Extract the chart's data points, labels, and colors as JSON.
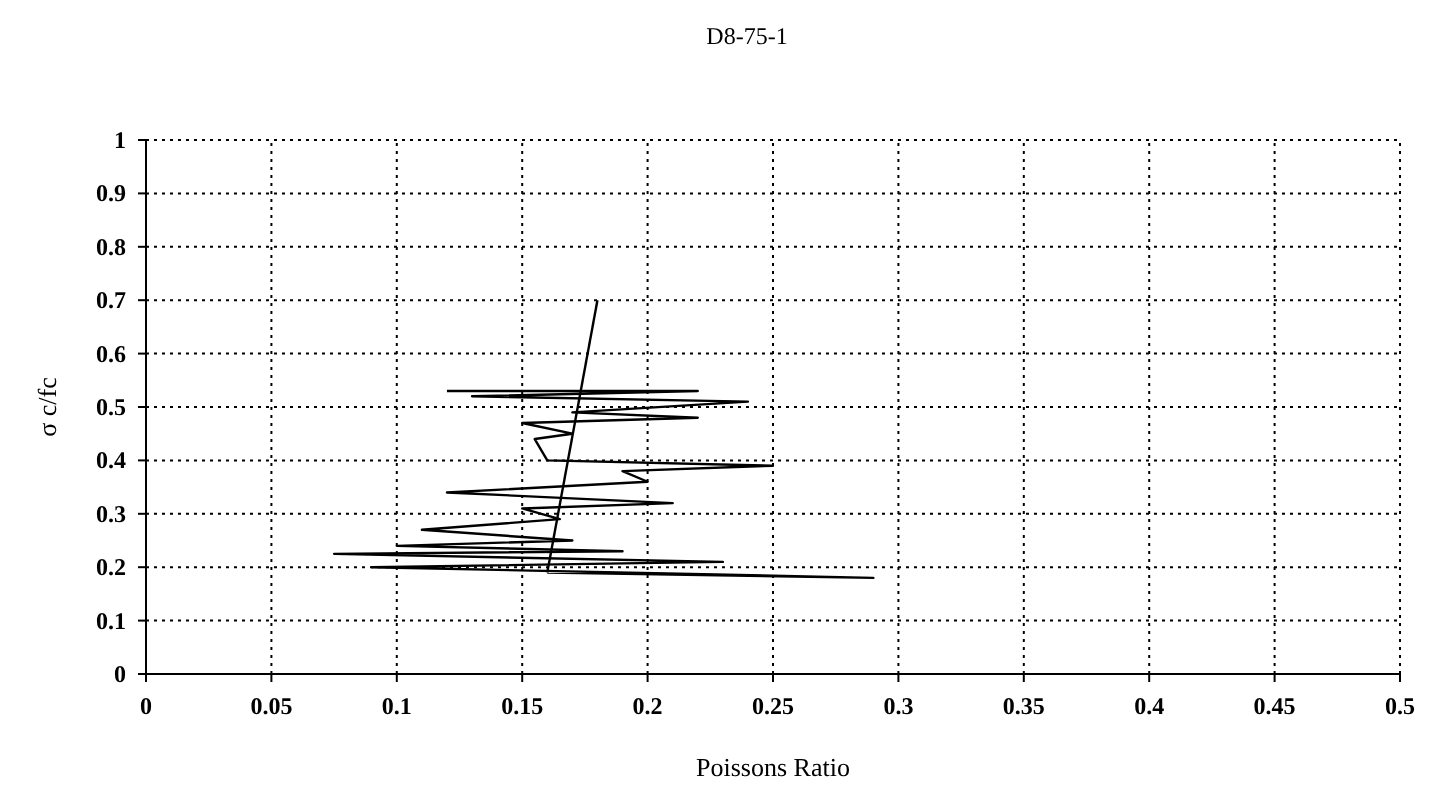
{
  "chart_data": {
    "type": "line",
    "title": "D8-75-1",
    "xlabel": "Poissons Ratio",
    "ylabel": "σ c/fc",
    "xlim": [
      0,
      0.5
    ],
    "xticks": [
      0,
      0.05,
      0.1,
      0.15,
      0.2,
      0.25,
      0.3,
      0.35,
      0.4,
      0.45,
      0.5
    ],
    "ylim": [
      0,
      1
    ],
    "yticks": [
      0,
      0.1,
      0.2,
      0.3,
      0.4,
      0.5,
      0.6,
      0.7,
      0.8,
      0.9,
      1
    ],
    "grid": true,
    "line_style": "solid",
    "marker": "none",
    "series": [
      {
        "color": "#000000",
        "x": [
          0.16,
          0.29,
          0.09,
          0.23,
          0.075,
          0.19,
          0.1,
          0.17,
          0.11,
          0.165,
          0.15,
          0.21,
          0.12,
          0.2,
          0.19,
          0.25,
          0.16,
          0.155,
          0.17,
          0.15,
          0.22,
          0.17,
          0.24,
          0.13,
          0.22,
          0.12
        ],
        "values": [
          0.19,
          0.18,
          0.2,
          0.21,
          0.225,
          0.23,
          0.24,
          0.25,
          0.27,
          0.29,
          0.31,
          0.32,
          0.34,
          0.36,
          0.38,
          0.39,
          0.4,
          0.44,
          0.45,
          0.47,
          0.48,
          0.49,
          0.51,
          0.52,
          0.53,
          0.53
        ]
      },
      {
        "color": "#000000",
        "x": [
          0.16,
          0.18
        ],
        "values": [
          0.19,
          0.7
        ]
      }
    ]
  }
}
